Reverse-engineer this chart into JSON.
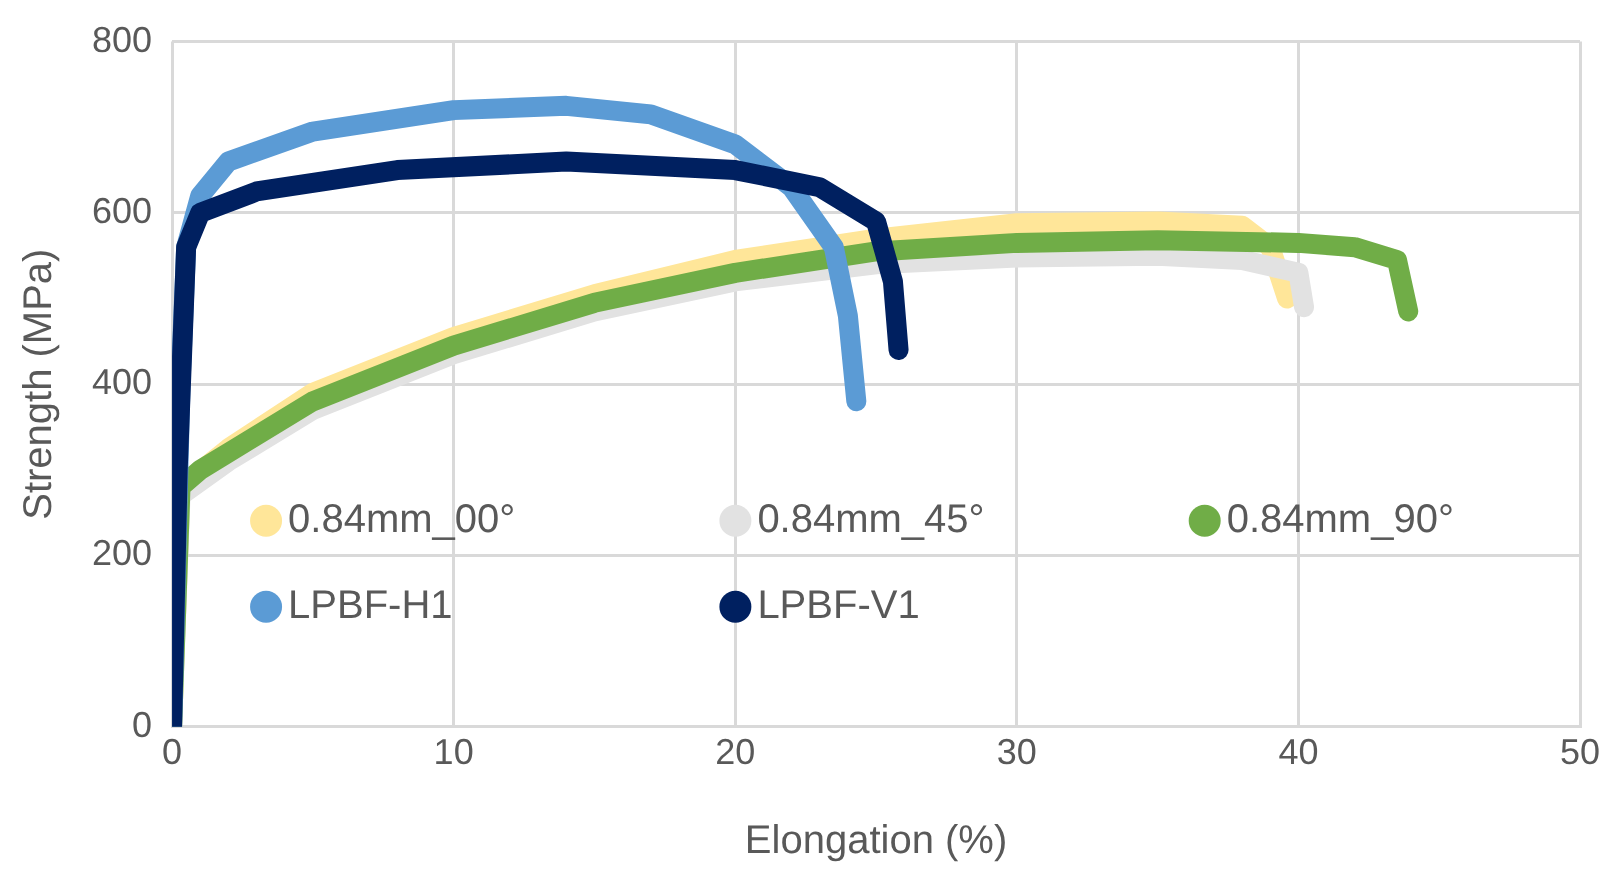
{
  "chart_data": {
    "type": "line",
    "xlabel": "Elongation (%)",
    "ylabel": "Strength (MPa)",
    "xlim": [
      0,
      50
    ],
    "xticks": [
      0,
      10,
      20,
      30,
      40,
      50
    ],
    "ylim": [
      0,
      800
    ],
    "yticks": [
      0,
      200,
      400,
      600,
      800
    ],
    "grid": true,
    "legend": "bottom",
    "marker": "none",
    "line_style": "solid",
    "series": [
      {
        "name": "0.84mm_00°",
        "color": "#ffe699",
        "x": [
          0,
          0.3,
          2,
          5,
          10,
          15,
          20,
          25,
          30,
          35,
          38,
          39,
          39.6
        ],
        "values": [
          0,
          280,
          325,
          390,
          455,
          505,
          545,
          570,
          588,
          590,
          585,
          560,
          500
        ]
      },
      {
        "name": "0.84mm_45°",
        "color": "#e2e2e2",
        "x": [
          0,
          0.3,
          2,
          5,
          10,
          15,
          20,
          25,
          30,
          35,
          38,
          40,
          40.2
        ],
        "values": [
          0,
          270,
          310,
          370,
          435,
          485,
          520,
          540,
          548,
          550,
          545,
          530,
          490
        ]
      },
      {
        "name": "0.84mm_90°",
        "color": "#70ad47",
        "x": [
          0,
          0.3,
          1,
          2,
          5,
          10,
          15,
          20,
          25,
          30,
          35,
          40,
          42,
          43.5,
          43.9
        ],
        "values": [
          0,
          280,
          300,
          320,
          380,
          445,
          495,
          530,
          555,
          565,
          568,
          565,
          560,
          545,
          485
        ]
      },
      {
        "name": "LPBF-H1",
        "color": "#5b9bd5",
        "x": [
          0,
          0.3,
          0.5,
          1,
          2,
          5,
          10,
          14,
          17,
          20,
          22,
          23.5,
          24,
          24.3
        ],
        "values": [
          0,
          400,
          560,
          620,
          660,
          695,
          720,
          725,
          715,
          680,
          630,
          560,
          480,
          380
        ]
      },
      {
        "name": "LPBF-V1",
        "color": "#002060",
        "x": [
          0,
          0.2,
          0.5,
          1,
          3,
          8,
          14,
          20,
          23,
          25,
          25.6,
          25.8
        ],
        "values": [
          0,
          300,
          560,
          600,
          625,
          650,
          660,
          650,
          630,
          590,
          520,
          440
        ]
      }
    ]
  }
}
